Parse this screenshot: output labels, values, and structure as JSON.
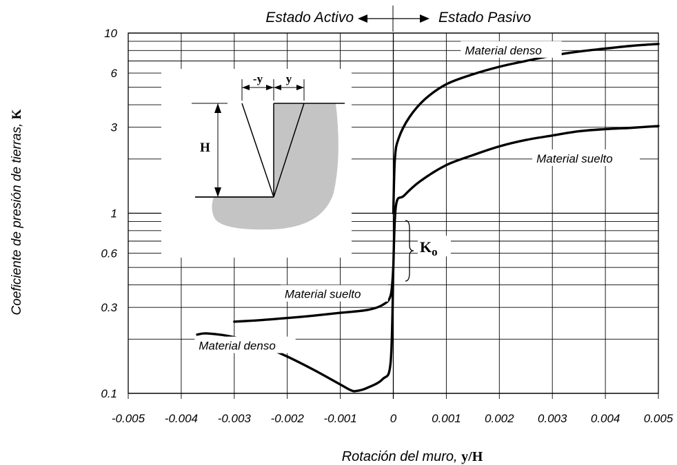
{
  "chart_data": {
    "type": "line",
    "header": {
      "left": "Estado Activo",
      "right": "Estado Pasivo"
    },
    "xlabel": {
      "text": "Rotación del muro, ",
      "symbol": "y/H"
    },
    "ylabel": {
      "text": "Coeficiente de presión de tierras, ",
      "symbol": "K"
    },
    "xlim": [
      -0.005,
      0.005
    ],
    "ylim": [
      0.1,
      10
    ],
    "yscale": "log",
    "grid": true,
    "x_ticks": [
      -0.005,
      -0.004,
      -0.003,
      -0.002,
      -0.001,
      0,
      0.001,
      0.002,
      0.003,
      0.004,
      0.005
    ],
    "x_tick_labels": [
      "-0.005",
      "-0.004",
      "-0.003",
      "-0.002",
      "-0.001",
      "0",
      "0.001",
      "0.002",
      "0.003",
      "0.004",
      "0.005"
    ],
    "y_grid": [
      0.1,
      0.2,
      0.3,
      0.4,
      0.5,
      0.6,
      0.7,
      0.8,
      0.9,
      1,
      2,
      3,
      4,
      5,
      6,
      7,
      8,
      9,
      10
    ],
    "y_ticks": [
      0.1,
      0.3,
      0.6,
      1,
      3,
      6,
      10
    ],
    "y_tick_labels": [
      "0.1",
      "0.3",
      "0.6",
      "1",
      "3",
      "6",
      "10"
    ],
    "series": [
      {
        "name": "Material denso",
        "state": "passive",
        "x": [
          0,
          3e-05,
          0.0001,
          0.0003,
          0.0006,
          0.001,
          0.0015,
          0.002,
          0.0025,
          0.003,
          0.0035,
          0.004,
          0.0045,
          0.005
        ],
        "y": [
          1.0,
          2.0,
          2.6,
          3.4,
          4.3,
          5.2,
          5.9,
          6.5,
          7.0,
          7.5,
          7.9,
          8.2,
          8.5,
          8.7
        ]
      },
      {
        "name": "Material suelto",
        "state": "passive",
        "x": [
          0,
          5e-05,
          0.0002,
          0.0005,
          0.001,
          0.0015,
          0.002,
          0.0025,
          0.003,
          0.0035,
          0.004,
          0.0045,
          0.005
        ],
        "y": [
          0.5,
          1.1,
          1.25,
          1.5,
          1.85,
          2.1,
          2.35,
          2.55,
          2.7,
          2.85,
          2.93,
          2.98,
          3.05
        ]
      },
      {
        "name": "Material suelto",
        "state": "active",
        "x": [
          -0.003,
          -0.0025,
          -0.002,
          -0.0015,
          -0.001,
          -0.0005,
          -0.0002,
          -5e-05,
          0
        ],
        "y": [
          0.25,
          0.255,
          0.262,
          0.27,
          0.28,
          0.29,
          0.31,
          0.35,
          0.5
        ]
      },
      {
        "name": "Material denso",
        "state": "active",
        "x": [
          -0.0037,
          -0.0035,
          -0.003,
          -0.0025,
          -0.002,
          -0.0015,
          -0.001,
          -0.0008,
          -0.0007,
          -0.0005,
          -0.0002,
          -5e-05,
          0
        ],
        "y": [
          0.212,
          0.215,
          0.205,
          0.185,
          0.16,
          0.135,
          0.112,
          0.104,
          0.103,
          0.107,
          0.12,
          0.15,
          0.5
        ]
      }
    ],
    "annotations": [
      {
        "id": "ann-denso-pasivo",
        "text": "Material denso",
        "x": 0.00135,
        "y": 7.9
      },
      {
        "id": "ann-suelto-pasivo",
        "text": "Material suelto",
        "x": 0.0027,
        "y": 1.98
      },
      {
        "id": "ann-suelto-activo",
        "text": "Material suelto",
        "x": -0.00205,
        "y": 0.35
      },
      {
        "id": "ann-denso-activo",
        "text": "Material denso",
        "x": -0.00367,
        "y": 0.181
      },
      {
        "id": "ann-ko",
        "text": "K",
        "subscript": "o",
        "x": 0.0005,
        "y": 0.64
      }
    ],
    "inset": {
      "labels": {
        "minus_y": "-y",
        "y": "y",
        "H": "H"
      }
    },
    "colors": {
      "curve": "#000000",
      "grid": "#000000",
      "soil": "#c4c4c4"
    }
  }
}
